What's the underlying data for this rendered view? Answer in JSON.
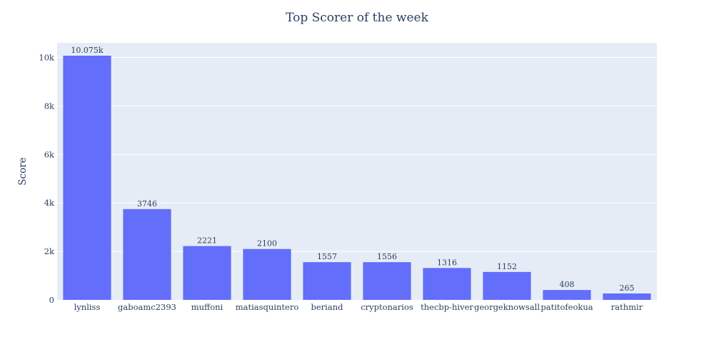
{
  "chart_data": {
    "type": "bar",
    "title": "Top Scorer of the week",
    "xlabel": "",
    "ylabel": "Score",
    "categories": [
      "lynliss",
      "gaboamc2393",
      "muffoni",
      "matiasquintero",
      "beriand",
      "cryptonarios",
      "thecbp-hiver",
      "georgeknowsall",
      "patitofeokua",
      "rathmir"
    ],
    "values": [
      10075,
      3746,
      2221,
      2100,
      1557,
      1556,
      1316,
      1152,
      408,
      265
    ],
    "value_labels": [
      "10.075k",
      "3746",
      "2221",
      "2100",
      "1557",
      "1556",
      "1316",
      "1152",
      "408",
      "265"
    ],
    "yticks": [
      0,
      2000,
      4000,
      6000,
      8000,
      10000
    ],
    "ytick_labels": [
      "0",
      "2k",
      "4k",
      "6k",
      "8k",
      "10k"
    ],
    "ylim": [
      0,
      10605
    ],
    "grid": true,
    "colors": {
      "bar": "#636efa",
      "plot_bg": "#e5ecf6",
      "grid": "#ffffff",
      "text": "#2a3f5f"
    }
  }
}
